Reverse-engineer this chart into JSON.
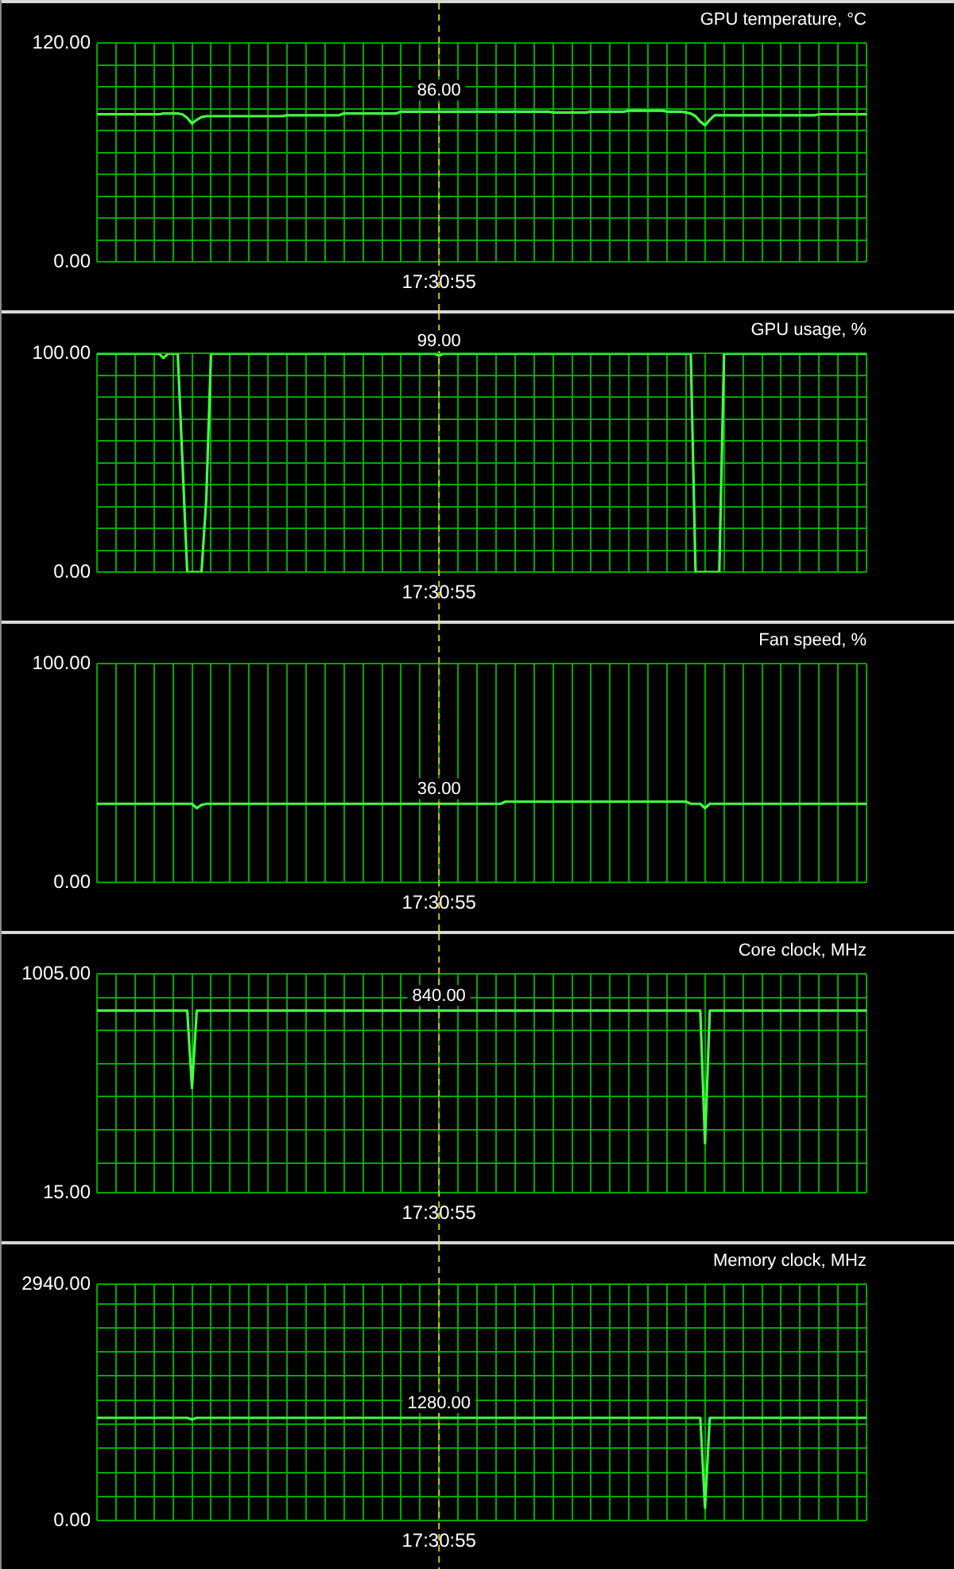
{
  "chart_data": [
    {
      "type": "line",
      "title": "GPU temperature, °C",
      "grid": true,
      "marker": "none",
      "line_style": "solid",
      "categories": [
        null,
        null,
        null,
        null,
        null,
        null,
        null,
        null,
        null,
        null,
        null,
        null,
        null,
        null,
        null,
        null,
        null,
        null,
        null,
        null,
        null,
        null,
        null,
        null,
        null,
        null,
        null,
        null,
        null,
        null,
        null,
        null,
        null,
        null,
        null,
        null,
        null,
        null,
        null,
        null,
        null,
        null,
        null,
        null,
        null,
        null,
        null,
        null,
        null,
        null,
        null,
        null,
        null,
        null,
        null,
        null,
        null,
        null,
        null,
        null,
        null,
        null,
        null,
        null,
        null,
        null,
        null,
        null,
        null,
        null,
        null,
        null,
        "17:30:55",
        null,
        null,
        null,
        null,
        null,
        null,
        null,
        null,
        null,
        null,
        null,
        null,
        null,
        null,
        null,
        null,
        null,
        null,
        null,
        null,
        null,
        null,
        null,
        null,
        null,
        null,
        null,
        null,
        null,
        null,
        null,
        null,
        null,
        null,
        null,
        null,
        null,
        null,
        null,
        null,
        null,
        null,
        null,
        null,
        null,
        null,
        null,
        null,
        null,
        null,
        null,
        null,
        null,
        null,
        null,
        null,
        null,
        null,
        null,
        null,
        null,
        null,
        null,
        null,
        null,
        null,
        null,
        null,
        null,
        null,
        null,
        null,
        null,
        null,
        null,
        null,
        null,
        null,
        null,
        null,
        null,
        null,
        null,
        null,
        null,
        null,
        null,
        null,
        null,
        null
      ],
      "ylim": [
        0,
        120
      ],
      "yticks": [
        {
          "value": 0,
          "label": "0.00"
        },
        {
          "value": 12,
          "label": null
        },
        {
          "value": 24,
          "label": null
        },
        {
          "value": 36,
          "label": null
        },
        {
          "value": 48,
          "label": null
        },
        {
          "value": 60,
          "label": null
        },
        {
          "value": 72,
          "label": null
        },
        {
          "value": 84,
          "label": null
        },
        {
          "value": 96,
          "label": null
        },
        {
          "value": 108,
          "label": null
        },
        {
          "value": 120,
          "label": "120.00"
        }
      ],
      "series": [
        {
          "color": "#44ff44",
          "values": [
            81,
            81,
            81,
            81,
            81,
            81,
            81,
            81,
            81,
            81,
            81,
            81,
            81,
            81,
            81.5,
            81.5,
            81.5,
            81.5,
            81,
            79,
            76,
            78,
            79.5,
            80,
            80,
            80,
            80,
            80,
            80,
            80,
            80,
            80,
            80,
            80,
            80,
            80,
            80,
            80,
            80,
            80,
            80.5,
            80.5,
            80.5,
            80.5,
            80.5,
            80.5,
            80.5,
            80.5,
            80.5,
            80.5,
            80.5,
            80.5,
            81.5,
            81.5,
            81.5,
            81.5,
            81.5,
            81.5,
            81.5,
            81.5,
            81.5,
            81.5,
            81.5,
            81.5,
            82.5,
            82.5,
            82.5,
            82.5,
            82.5,
            82.5,
            82.5,
            82.5,
            82.5,
            82.5,
            82.5,
            82.5,
            82.5,
            82.5,
            82.5,
            82.5,
            82.5,
            82.5,
            82.5,
            82.5,
            82.5,
            82.5,
            82.5,
            82.5,
            82.5,
            82.5,
            82.5,
            82.5,
            82.5,
            82.5,
            82.5,
            82.5,
            82,
            82,
            82,
            82,
            82,
            82,
            82,
            82,
            82.5,
            82.5,
            82.5,
            82.5,
            82.5,
            82.5,
            82.5,
            82.5,
            83,
            83,
            83,
            83,
            83,
            83,
            83,
            83,
            82.5,
            82.5,
            82.5,
            82.5,
            82,
            81.5,
            80,
            77,
            75,
            78,
            80.5,
            80.5,
            80.5,
            80.5,
            80.5,
            80.5,
            80.5,
            80.5,
            80.5,
            80.5,
            80.5,
            80.5,
            80.5,
            80.5,
            80.5,
            80.5,
            80.5,
            80.5,
            80.5,
            80.5,
            80.5,
            80.5,
            81,
            81,
            81,
            81,
            81,
            81,
            81,
            81,
            81,
            81,
            81
          ]
        }
      ],
      "ref_lines": [
        {
          "axis": "x",
          "value": "17:30:55",
          "color": "#d4c800",
          "line_style": "dashed"
        }
      ],
      "annotations": [
        {
          "text": "86.00",
          "x": "17:30:55",
          "y": 86
        }
      ]
    },
    {
      "type": "line",
      "title": "GPU usage, %",
      "grid": true,
      "marker": "none",
      "line_style": "solid",
      "categories": [
        null,
        null,
        null,
        null,
        null,
        null,
        null,
        null,
        null,
        null,
        null,
        null,
        null,
        null,
        null,
        null,
        null,
        null,
        null,
        null,
        null,
        null,
        null,
        null,
        null,
        null,
        null,
        null,
        null,
        null,
        null,
        null,
        null,
        null,
        null,
        null,
        null,
        null,
        null,
        null,
        null,
        null,
        null,
        null,
        null,
        null,
        null,
        null,
        null,
        null,
        null,
        null,
        null,
        null,
        null,
        null,
        null,
        null,
        null,
        null,
        null,
        null,
        null,
        null,
        null,
        null,
        null,
        null,
        null,
        null,
        null,
        null,
        "17:30:55",
        null,
        null,
        null,
        null,
        null,
        null,
        null,
        null,
        null,
        null,
        null,
        null,
        null,
        null,
        null,
        null,
        null,
        null,
        null,
        null,
        null,
        null,
        null,
        null,
        null,
        null,
        null,
        null,
        null,
        null,
        null,
        null,
        null,
        null,
        null,
        null,
        null,
        null,
        null,
        null,
        null,
        null,
        null,
        null,
        null,
        null,
        null,
        null,
        null,
        null,
        null,
        null,
        null,
        null,
        null,
        null,
        null,
        null,
        null,
        null,
        null,
        null,
        null,
        null,
        null,
        null,
        null,
        null,
        null,
        null,
        null,
        null,
        null,
        null,
        null,
        null,
        null,
        null,
        null,
        null,
        null,
        null,
        null,
        null,
        null,
        null,
        null,
        null,
        null,
        null
      ],
      "ylim": [
        0,
        100
      ],
      "yticks": [
        {
          "value": 0,
          "label": "0.00"
        },
        {
          "value": 10,
          "label": null
        },
        {
          "value": 20,
          "label": null
        },
        {
          "value": 30,
          "label": null
        },
        {
          "value": 40,
          "label": null
        },
        {
          "value": 50,
          "label": null
        },
        {
          "value": 60,
          "label": null
        },
        {
          "value": 70,
          "label": null
        },
        {
          "value": 80,
          "label": null
        },
        {
          "value": 90,
          "label": null
        },
        {
          "value": 100,
          "label": "100.00"
        }
      ],
      "series": [
        {
          "color": "#44ff44",
          "values": [
            100,
            100,
            100,
            100,
            100,
            100,
            100,
            100,
            100,
            100,
            100,
            100,
            100,
            100,
            98,
            100,
            100,
            100,
            50,
            0,
            0,
            0,
            0,
            33,
            100,
            100,
            100,
            100,
            100,
            100,
            100,
            100,
            100,
            100,
            100,
            100,
            100,
            100,
            100,
            100,
            100,
            100,
            100,
            100,
            100,
            100,
            100,
            100,
            100,
            100,
            100,
            100,
            100,
            100,
            100,
            100,
            100,
            100,
            100,
            100,
            100,
            100,
            100,
            100,
            100,
            100,
            100,
            100,
            100,
            100,
            100,
            100,
            99,
            100,
            100,
            100,
            100,
            100,
            100,
            100,
            100,
            100,
            100,
            100,
            100,
            100,
            100,
            100,
            100,
            100,
            100,
            100,
            100,
            100,
            100,
            100,
            100,
            100,
            100,
            100,
            100,
            100,
            100,
            100,
            100,
            100,
            100,
            100,
            100,
            100,
            100,
            100,
            100,
            100,
            100,
            100,
            100,
            100,
            100,
            100,
            100,
            100,
            100,
            100,
            100,
            100,
            0,
            0,
            0,
            0,
            0,
            0,
            100,
            100,
            100,
            100,
            100,
            100,
            100,
            100,
            100,
            100,
            100,
            100,
            100,
            100,
            100,
            100,
            100,
            100,
            100,
            100,
            100,
            100,
            100,
            100,
            100,
            100,
            100,
            100,
            100,
            100,
            100
          ]
        }
      ],
      "ref_lines": [
        {
          "axis": "x",
          "value": "17:30:55",
          "color": "#d4c800",
          "line_style": "dashed"
        }
      ],
      "annotations": [
        {
          "text": "99.00",
          "x": "17:30:55",
          "y": 99
        }
      ]
    },
    {
      "type": "line",
      "title": "Fan speed, %",
      "grid": true,
      "marker": "none",
      "line_style": "solid",
      "categories": [
        null,
        null,
        null,
        null,
        null,
        null,
        null,
        null,
        null,
        null,
        null,
        null,
        null,
        null,
        null,
        null,
        null,
        null,
        null,
        null,
        null,
        null,
        null,
        null,
        null,
        null,
        null,
        null,
        null,
        null,
        null,
        null,
        null,
        null,
        null,
        null,
        null,
        null,
        null,
        null,
        null,
        null,
        null,
        null,
        null,
        null,
        null,
        null,
        null,
        null,
        null,
        null,
        null,
        null,
        null,
        null,
        null,
        null,
        null,
        null,
        null,
        null,
        null,
        null,
        null,
        null,
        null,
        null,
        null,
        null,
        null,
        null,
        "17:30:55",
        null,
        null,
        null,
        null,
        null,
        null,
        null,
        null,
        null,
        null,
        null,
        null,
        null,
        null,
        null,
        null,
        null,
        null,
        null,
        null,
        null,
        null,
        null,
        null,
        null,
        null,
        null,
        null,
        null,
        null,
        null,
        null,
        null,
        null,
        null,
        null,
        null,
        null,
        null,
        null,
        null,
        null,
        null,
        null,
        null,
        null,
        null,
        null,
        null,
        null,
        null,
        null,
        null,
        null,
        null,
        null,
        null,
        null,
        null,
        null,
        null,
        null,
        null,
        null,
        null,
        null,
        null,
        null,
        null,
        null,
        null,
        null,
        null,
        null,
        null,
        null,
        null,
        null,
        null,
        null,
        null,
        null,
        null,
        null,
        null,
        null,
        null,
        null,
        null,
        null
      ],
      "ylim": [
        0,
        100
      ],
      "yticks": [
        {
          "value": 0,
          "label": "0.00"
        },
        {
          "value": 100,
          "label": "100.00"
        }
      ],
      "series": [
        {
          "color": "#44ff44",
          "values": [
            36,
            36,
            36,
            36,
            36,
            36,
            36,
            36,
            36,
            36,
            36,
            36,
            36,
            36,
            36,
            36,
            36,
            36,
            36,
            36,
            36,
            34,
            35.5,
            36,
            36,
            36,
            36,
            36,
            36,
            36,
            36,
            36,
            36,
            36,
            36,
            36,
            36,
            36,
            36,
            36,
            36,
            36,
            36,
            36,
            36,
            36,
            36,
            36,
            36,
            36,
            36,
            36,
            36,
            36,
            36,
            36,
            36,
            36,
            36,
            36,
            36,
            36,
            36,
            36,
            36,
            36,
            36,
            36,
            36,
            36,
            36,
            36,
            36,
            36,
            36,
            36,
            36,
            36,
            36,
            36,
            36,
            36,
            36,
            36,
            36,
            36,
            37,
            37,
            37,
            37,
            37,
            37,
            37,
            37,
            37,
            37,
            37,
            37,
            37,
            37,
            37,
            37,
            37,
            37,
            37,
            37,
            37,
            37,
            37,
            37,
            37,
            37,
            37,
            37,
            37,
            37,
            37,
            37,
            37,
            37,
            37,
            37,
            37,
            37,
            37,
            36,
            36,
            36,
            34,
            36,
            36,
            36,
            36,
            36,
            36,
            36,
            36,
            36,
            36,
            36,
            36,
            36,
            36,
            36,
            36,
            36,
            36,
            36,
            36,
            36,
            36,
            36,
            36,
            36,
            36,
            36,
            36,
            36,
            36,
            36,
            36,
            36,
            36
          ]
        }
      ],
      "ref_lines": [
        {
          "axis": "x",
          "value": "17:30:55",
          "color": "#d4c800",
          "line_style": "dashed"
        }
      ],
      "annotations": [
        {
          "text": "36.00",
          "x": "17:30:55",
          "y": 36
        }
      ]
    },
    {
      "type": "line",
      "title": "Core clock, MHz",
      "grid": true,
      "marker": "none",
      "line_style": "solid",
      "categories": [
        null,
        null,
        null,
        null,
        null,
        null,
        null,
        null,
        null,
        null,
        null,
        null,
        null,
        null,
        null,
        null,
        null,
        null,
        null,
        null,
        null,
        null,
        null,
        null,
        null,
        null,
        null,
        null,
        null,
        null,
        null,
        null,
        null,
        null,
        null,
        null,
        null,
        null,
        null,
        null,
        null,
        null,
        null,
        null,
        null,
        null,
        null,
        null,
        null,
        null,
        null,
        null,
        null,
        null,
        null,
        null,
        null,
        null,
        null,
        null,
        null,
        null,
        null,
        null,
        null,
        null,
        null,
        null,
        null,
        null,
        null,
        null,
        "17:30:55",
        null,
        null,
        null,
        null,
        null,
        null,
        null,
        null,
        null,
        null,
        null,
        null,
        null,
        null,
        null,
        null,
        null,
        null,
        null,
        null,
        null,
        null,
        null,
        null,
        null,
        null,
        null,
        null,
        null,
        null,
        null,
        null,
        null,
        null,
        null,
        null,
        null,
        null,
        null,
        null,
        null,
        null,
        null,
        null,
        null,
        null,
        null,
        null,
        null,
        null,
        null,
        null,
        null,
        null,
        null,
        null,
        null,
        null,
        null,
        null,
        null,
        null,
        null,
        null,
        null,
        null,
        null,
        null,
        null,
        null,
        null,
        null,
        null,
        null,
        null,
        null,
        null,
        null,
        null,
        null,
        null,
        null,
        null,
        null,
        null,
        null,
        null,
        null,
        null,
        null
      ],
      "ylim": [
        15,
        1005
      ],
      "yticks": [
        {
          "value": 15,
          "label": "15.00"
        },
        {
          "value": 150,
          "label": null
        },
        {
          "value": 300,
          "label": null
        },
        {
          "value": 450,
          "label": null
        },
        {
          "value": 600,
          "label": null
        },
        {
          "value": 750,
          "label": null
        },
        {
          "value": 900,
          "label": null
        },
        {
          "value": 1005,
          "label": "1005.00"
        }
      ],
      "series": [
        {
          "color": "#44ff44",
          "values": [
            840,
            840,
            840,
            840,
            840,
            840,
            840,
            840,
            840,
            840,
            840,
            840,
            840,
            840,
            840,
            840,
            840,
            840,
            840,
            840,
            490,
            840,
            840,
            840,
            840,
            840,
            840,
            840,
            840,
            840,
            840,
            840,
            840,
            840,
            840,
            840,
            840,
            840,
            840,
            840,
            840,
            840,
            840,
            840,
            840,
            840,
            840,
            840,
            840,
            840,
            840,
            840,
            840,
            840,
            840,
            840,
            840,
            840,
            840,
            840,
            840,
            840,
            840,
            840,
            840,
            840,
            840,
            840,
            840,
            840,
            840,
            840,
            840,
            840,
            840,
            840,
            840,
            840,
            840,
            840,
            840,
            840,
            840,
            840,
            840,
            840,
            840,
            840,
            840,
            840,
            840,
            840,
            840,
            840,
            840,
            840,
            840,
            840,
            840,
            840,
            840,
            840,
            840,
            840,
            840,
            840,
            840,
            840,
            840,
            840,
            840,
            840,
            840,
            840,
            840,
            840,
            840,
            840,
            840,
            840,
            840,
            840,
            840,
            840,
            840,
            840,
            840,
            840,
            240,
            840,
            840,
            840,
            840,
            840,
            840,
            840,
            840,
            840,
            840,
            840,
            840,
            840,
            840,
            840,
            840,
            840,
            840,
            840,
            840,
            840,
            840,
            840,
            840,
            840,
            840,
            840,
            840,
            840,
            840,
            840,
            840,
            840,
            840
          ]
        }
      ],
      "ref_lines": [
        {
          "axis": "x",
          "value": "17:30:55",
          "color": "#d4c800",
          "line_style": "dashed"
        }
      ],
      "annotations": [
        {
          "text": "840.00",
          "x": "17:30:55",
          "y": 840
        }
      ]
    },
    {
      "type": "line",
      "title": "Memory clock, MHz",
      "grid": true,
      "marker": "none",
      "line_style": "solid",
      "categories": [
        null,
        null,
        null,
        null,
        null,
        null,
        null,
        null,
        null,
        null,
        null,
        null,
        null,
        null,
        null,
        null,
        null,
        null,
        null,
        null,
        null,
        null,
        null,
        null,
        null,
        null,
        null,
        null,
        null,
        null,
        null,
        null,
        null,
        null,
        null,
        null,
        null,
        null,
        null,
        null,
        null,
        null,
        null,
        null,
        null,
        null,
        null,
        null,
        null,
        null,
        null,
        null,
        null,
        null,
        null,
        null,
        null,
        null,
        null,
        null,
        null,
        null,
        null,
        null,
        null,
        null,
        null,
        null,
        null,
        null,
        null,
        null,
        "17:30:55",
        null,
        null,
        null,
        null,
        null,
        null,
        null,
        null,
        null,
        null,
        null,
        null,
        null,
        null,
        null,
        null,
        null,
        null,
        null,
        null,
        null,
        null,
        null,
        null,
        null,
        null,
        null,
        null,
        null,
        null,
        null,
        null,
        null,
        null,
        null,
        null,
        null,
        null,
        null,
        null,
        null,
        null,
        null,
        null,
        null,
        null,
        null,
        null,
        null,
        null,
        null,
        null,
        null,
        null,
        null,
        null,
        null,
        null,
        null,
        null,
        null,
        null,
        null,
        null,
        null,
        null,
        null,
        null,
        null,
        null,
        null,
        null,
        null,
        null,
        null,
        null,
        null,
        null,
        null,
        null,
        null,
        null,
        null,
        null,
        null,
        null,
        null,
        null,
        null,
        null
      ],
      "ylim": [
        0,
        2940
      ],
      "yticks": [
        {
          "value": 0,
          "label": "0.00"
        },
        {
          "value": 300,
          "label": null
        },
        {
          "value": 600,
          "label": null
        },
        {
          "value": 900,
          "label": null
        },
        {
          "value": 1200,
          "label": null
        },
        {
          "value": 1500,
          "label": null
        },
        {
          "value": 1800,
          "label": null
        },
        {
          "value": 2100,
          "label": null
        },
        {
          "value": 2400,
          "label": null
        },
        {
          "value": 2700,
          "label": null
        },
        {
          "value": 2940,
          "label": "2940.00"
        }
      ],
      "series": [
        {
          "color": "#44ff44",
          "values": [
            1280,
            1280,
            1280,
            1280,
            1280,
            1280,
            1280,
            1280,
            1280,
            1280,
            1280,
            1280,
            1280,
            1280,
            1280,
            1280,
            1280,
            1280,
            1280,
            1280,
            1260,
            1280,
            1280,
            1280,
            1280,
            1280,
            1280,
            1280,
            1280,
            1280,
            1280,
            1280,
            1280,
            1280,
            1280,
            1280,
            1280,
            1280,
            1280,
            1280,
            1280,
            1280,
            1280,
            1280,
            1280,
            1280,
            1280,
            1280,
            1280,
            1280,
            1280,
            1280,
            1280,
            1280,
            1280,
            1280,
            1280,
            1280,
            1280,
            1280,
            1280,
            1280,
            1280,
            1280,
            1280,
            1280,
            1280,
            1280,
            1280,
            1280,
            1280,
            1280,
            1280,
            1280,
            1280,
            1280,
            1280,
            1280,
            1280,
            1280,
            1280,
            1280,
            1280,
            1280,
            1280,
            1280,
            1280,
            1280,
            1280,
            1280,
            1280,
            1280,
            1280,
            1280,
            1280,
            1280,
            1280,
            1280,
            1280,
            1280,
            1280,
            1280,
            1280,
            1280,
            1280,
            1280,
            1280,
            1280,
            1280,
            1280,
            1280,
            1280,
            1280,
            1280,
            1280,
            1280,
            1280,
            1280,
            1280,
            1280,
            1280,
            1280,
            1280,
            1280,
            1280,
            1280,
            1280,
            1280,
            160,
            1280,
            1280,
            1280,
            1280,
            1280,
            1280,
            1280,
            1280,
            1280,
            1280,
            1280,
            1280,
            1280,
            1280,
            1280,
            1280,
            1280,
            1280,
            1280,
            1280,
            1280,
            1280,
            1280,
            1280,
            1280,
            1280,
            1280,
            1280,
            1280,
            1280,
            1280,
            1280,
            1280,
            1280
          ]
        }
      ],
      "ref_lines": [
        {
          "axis": "x",
          "value": "17:30:55",
          "color": "#d4c800",
          "line_style": "dashed"
        }
      ],
      "annotations": [
        {
          "text": "1280.00",
          "x": "17:30:55",
          "y": 1280
        }
      ]
    }
  ]
}
